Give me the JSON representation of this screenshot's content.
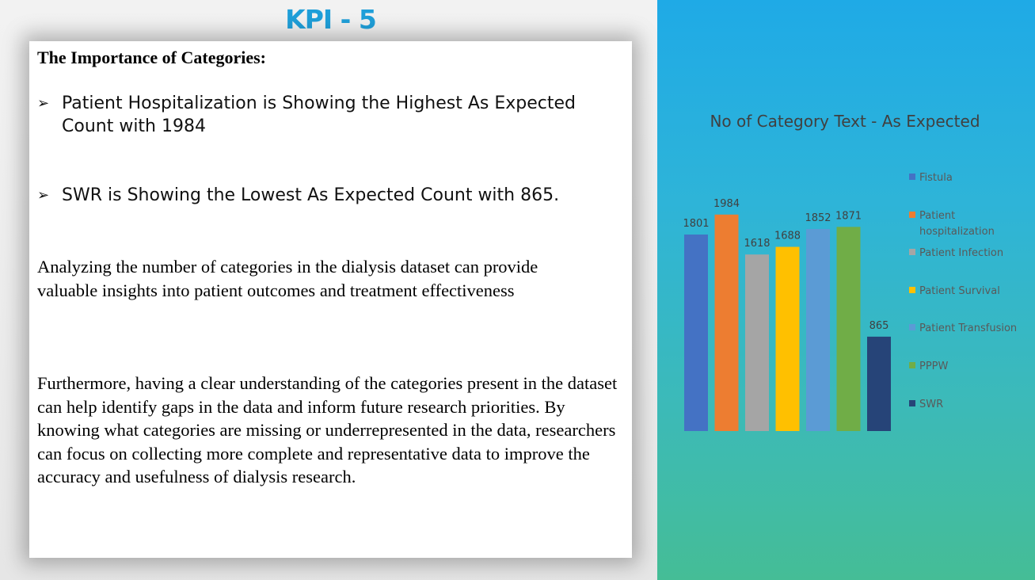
{
  "slide": {
    "title": "KPI - 5",
    "heading": "The Importance of Categories:",
    "bullets": [
      "Patient Hospitalization is Showing the Highest As Expected Count with 1984",
      "SWR  is Showing the Lowest As Expected Count  with 865."
    ],
    "paragraphs": [
      "Analyzing the number of categories in the dialysis dataset can provide valuable insights into patient outcomes and treatment effectiveness",
      "Furthermore, having a clear understanding of the categories present in the dataset can help identify gaps in the data and inform future research priorities. By knowing what categories are missing or underrepresented in the data, researchers can focus on collecting more complete and representative data to improve the accuracy and usefulness of dialysis research."
    ]
  },
  "chart_data": {
    "type": "bar",
    "title": "No of Category Text - As Expected",
    "categories": [
      "Fistula",
      "Patient hospitalization",
      "Patient Infection",
      "Patient Survival",
      "Patient Transfusion",
      "PPPW",
      "SWR"
    ],
    "values": [
      1801,
      1984,
      1618,
      1688,
      1852,
      1871,
      865
    ],
    "colors": [
      "#4472c4",
      "#ed7d31",
      "#a5a5a5",
      "#ffc000",
      "#5b9bd5",
      "#70ad47",
      "#264478"
    ],
    "legend": [
      {
        "lines": [
          "Fistula"
        ]
      },
      {
        "lines": [
          "Patient",
          "hospitalization"
        ]
      },
      {
        "lines": [
          "Patient Infection"
        ]
      },
      {
        "lines": [
          "Patient Survival"
        ]
      },
      {
        "lines": [
          "Patient Transfusion"
        ]
      },
      {
        "lines": [
          "PPPW"
        ]
      },
      {
        "lines": [
          "SWR"
        ]
      }
    ],
    "legend_position": "right",
    "ylim": [
      0,
      2000
    ],
    "grid": false,
    "data_labels": true
  }
}
